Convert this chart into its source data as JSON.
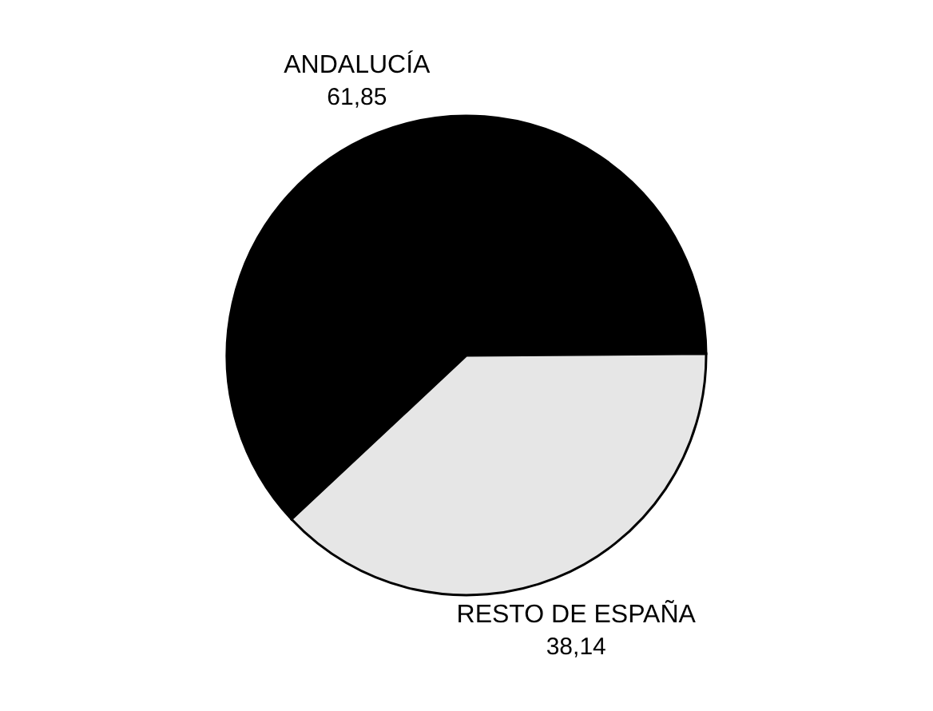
{
  "chart_data": {
    "type": "pie",
    "categories": [
      "ANDALUCÍA",
      "RESTO DE ESPAÑA"
    ],
    "values": [
      61.85,
      38.14
    ],
    "colors": [
      "#000000",
      "#e6e6e6"
    ],
    "value_labels": [
      "61,85",
      "38,14"
    ],
    "legend": false
  }
}
